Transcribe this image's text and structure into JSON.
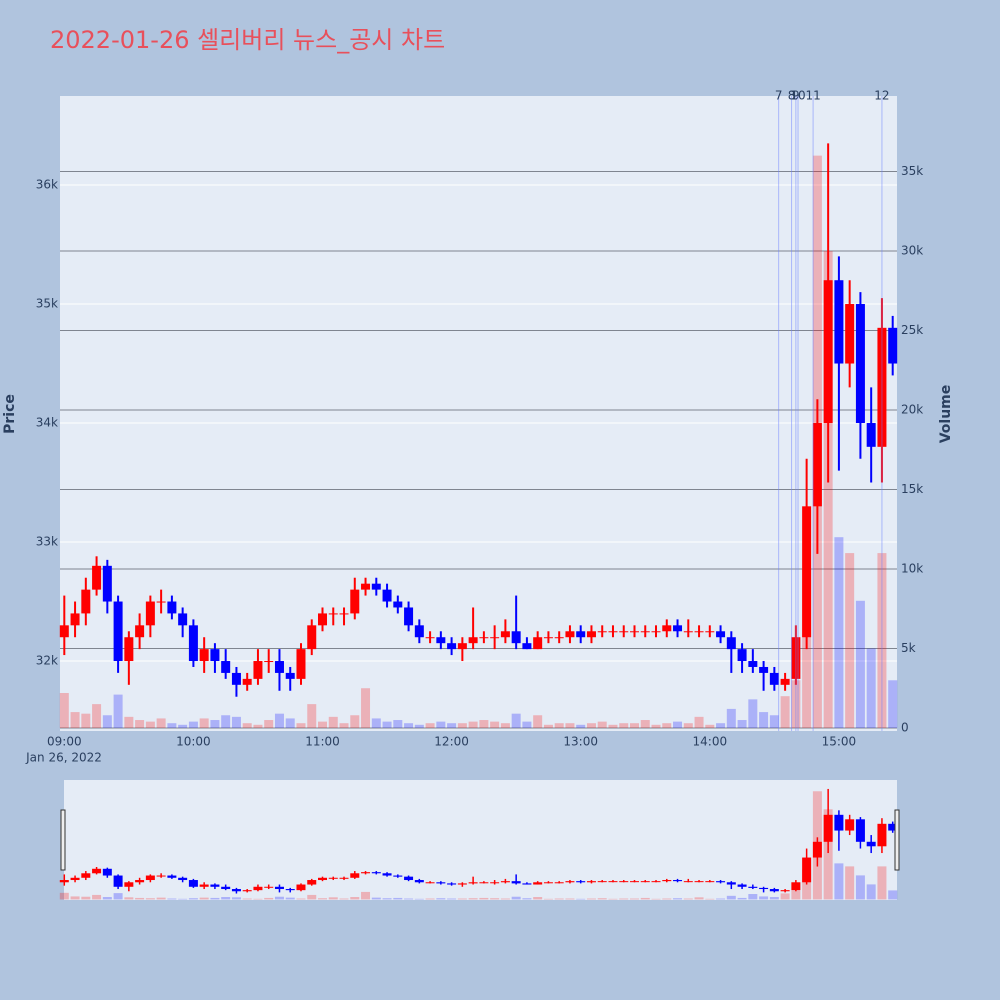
{
  "chart_data": {
    "type": "candlestick",
    "title": "2022-01-26 셀리버리 뉴스_공시 차트",
    "x": [
      "2022-01-26 09:00",
      "2022-01-26 09:05",
      "2022-01-26 09:10",
      "2022-01-26 09:15",
      "2022-01-26 09:20",
      "2022-01-26 09:25",
      "2022-01-26 09:30",
      "2022-01-26 09:35",
      "2022-01-26 09:40",
      "2022-01-26 09:45",
      "2022-01-26 09:50",
      "2022-01-26 09:55",
      "2022-01-26 10:00",
      "2022-01-26 10:05",
      "2022-01-26 10:10",
      "2022-01-26 10:15",
      "2022-01-26 10:20",
      "2022-01-26 10:25",
      "2022-01-26 10:30",
      "2022-01-26 10:35",
      "2022-01-26 10:40",
      "2022-01-26 10:45",
      "2022-01-26 10:50",
      "2022-01-26 10:55",
      "2022-01-26 11:00",
      "2022-01-26 11:05",
      "2022-01-26 11:10",
      "2022-01-26 11:15",
      "2022-01-26 11:20",
      "2022-01-26 11:25",
      "2022-01-26 11:30",
      "2022-01-26 11:35",
      "2022-01-26 11:40",
      "2022-01-26 11:45",
      "2022-01-26 11:50",
      "2022-01-26 11:55",
      "2022-01-26 12:00",
      "2022-01-26 12:05",
      "2022-01-26 12:10",
      "2022-01-26 12:15",
      "2022-01-26 12:20",
      "2022-01-26 12:25",
      "2022-01-26 12:30",
      "2022-01-26 12:35",
      "2022-01-26 12:40",
      "2022-01-26 12:45",
      "2022-01-26 12:50",
      "2022-01-26 12:55",
      "2022-01-26 13:00",
      "2022-01-26 13:05",
      "2022-01-26 13:10",
      "2022-01-26 13:15",
      "2022-01-26 13:20",
      "2022-01-26 13:25",
      "2022-01-26 13:30",
      "2022-01-26 13:35",
      "2022-01-26 13:40",
      "2022-01-26 13:45",
      "2022-01-26 13:50",
      "2022-01-26 13:55",
      "2022-01-26 14:00",
      "2022-01-26 14:05",
      "2022-01-26 14:10",
      "2022-01-26 14:15",
      "2022-01-26 14:20",
      "2022-01-26 14:25",
      "2022-01-26 14:30",
      "2022-01-26 14:35",
      "2022-01-26 14:40",
      "2022-01-26 14:45",
      "2022-01-26 14:50",
      "2022-01-26 14:55",
      "2022-01-26 15:00",
      "2022-01-26 15:05",
      "2022-01-26 15:10",
      "2022-01-26 15:15",
      "2022-01-26 15:20",
      "2022-01-26 15:25"
    ],
    "open": [
      32200,
      32300,
      32400,
      32600,
      32800,
      32500,
      32000,
      32200,
      32300,
      32500,
      32500,
      32400,
      32300,
      32000,
      32100,
      32000,
      31900,
      31800,
      31850,
      32000,
      32000,
      31900,
      31850,
      32100,
      32300,
      32400,
      32400,
      32400,
      32600,
      32650,
      32600,
      32500,
      32450,
      32300,
      32200,
      32200,
      32150,
      32100,
      32150,
      32200,
      32200,
      32200,
      32250,
      32150,
      32100,
      32200,
      32200,
      32200,
      32250,
      32200,
      32250,
      32250,
      32250,
      32250,
      32250,
      32250,
      32250,
      32300,
      32250,
      32250,
      32250,
      32250,
      32200,
      32100,
      32000,
      31950,
      31900,
      31800,
      31850,
      32200,
      33300,
      34000,
      35200,
      34500,
      35000,
      34000,
      33800,
      34800
    ],
    "high": [
      32550,
      32500,
      32700,
      32880,
      32850,
      32550,
      32250,
      32400,
      32550,
      32600,
      32550,
      32450,
      32350,
      32200,
      32150,
      32100,
      31950,
      31900,
      32100,
      32100,
      32100,
      31950,
      32150,
      32350,
      32450,
      32450,
      32450,
      32700,
      32700,
      32700,
      32650,
      32550,
      32500,
      32350,
      32250,
      32250,
      32200,
      32200,
      32450,
      32250,
      32300,
      32350,
      32550,
      32200,
      32250,
      32250,
      32250,
      32300,
      32300,
      32300,
      32300,
      32300,
      32300,
      32300,
      32300,
      32300,
      32350,
      32350,
      32350,
      32300,
      32300,
      32300,
      32250,
      32150,
      32100,
      32000,
      31950,
      31900,
      32300,
      33700,
      34200,
      36350,
      35400,
      35200,
      35100,
      34300,
      35050,
      34900
    ],
    "low": [
      32050,
      32200,
      32300,
      32550,
      32400,
      31900,
      31800,
      32100,
      32200,
      32400,
      32350,
      32200,
      31950,
      31900,
      31900,
      31850,
      31700,
      31750,
      31800,
      31900,
      31750,
      31750,
      31800,
      32050,
      32250,
      32300,
      32300,
      32350,
      32550,
      32550,
      32450,
      32400,
      32250,
      32150,
      32150,
      32100,
      32050,
      32000,
      32100,
      32150,
      32100,
      32150,
      32100,
      32100,
      32100,
      32150,
      32150,
      32150,
      32150,
      32150,
      32200,
      32200,
      32200,
      32200,
      32200,
      32200,
      32200,
      32200,
      32200,
      32200,
      32200,
      32150,
      31900,
      31900,
      31900,
      31750,
      31750,
      31750,
      31800,
      32100,
      32900,
      33500,
      33600,
      34300,
      33700,
      33500,
      33500,
      34400
    ],
    "close": [
      32300,
      32400,
      32600,
      32800,
      32500,
      32000,
      32200,
      32300,
      32500,
      32500,
      32400,
      32300,
      32000,
      32100,
      32000,
      31900,
      31800,
      31850,
      32000,
      32000,
      31900,
      31850,
      32100,
      32300,
      32400,
      32400,
      32400,
      32600,
      32650,
      32600,
      32500,
      32450,
      32300,
      32200,
      32200,
      32150,
      32100,
      32150,
      32200,
      32200,
      32200,
      32250,
      32150,
      32100,
      32200,
      32200,
      32200,
      32250,
      32200,
      32250,
      32250,
      32250,
      32250,
      32250,
      32250,
      32250,
      32300,
      32250,
      32250,
      32250,
      32250,
      32200,
      32100,
      32000,
      31950,
      31900,
      31800,
      31850,
      32200,
      33300,
      34000,
      35200,
      34500,
      35000,
      34000,
      33800,
      34800,
      34500
    ],
    "volume": [
      2200,
      1000,
      900,
      1500,
      800,
      2100,
      700,
      500,
      400,
      600,
      300,
      200,
      400,
      600,
      500,
      800,
      700,
      300,
      200,
      500,
      900,
      600,
      300,
      1500,
      400,
      700,
      300,
      800,
      2500,
      600,
      400,
      500,
      300,
      200,
      300,
      400,
      300,
      300,
      400,
      500,
      400,
      300,
      900,
      400,
      800,
      200,
      300,
      300,
      200,
      300,
      400,
      200,
      300,
      300,
      500,
      200,
      300,
      400,
      300,
      700,
      200,
      300,
      1200,
      500,
      1800,
      1000,
      800,
      2000,
      3000,
      10000,
      36000,
      30000,
      12000,
      11000,
      8000,
      5000,
      11000,
      3000
    ],
    "increasing_color": "#ff0000",
    "decreasing_color": "#0000ff",
    "xlim": [
      "2022-01-26 08:58",
      "2022-01-26 15:27"
    ],
    "xticks": [
      {
        "value": "2022-01-26 09:00",
        "label": "09:00"
      },
      {
        "value": "2022-01-26 10:00",
        "label": "10:00"
      },
      {
        "value": "2022-01-26 11:00",
        "label": "11:00"
      },
      {
        "value": "2022-01-26 12:00",
        "label": "12:00"
      },
      {
        "value": "2022-01-26 13:00",
        "label": "13:00"
      },
      {
        "value": "2022-01-26 14:00",
        "label": "14:00"
      },
      {
        "value": "2022-01-26 15:00",
        "label": "15:00"
      }
    ],
    "x_date_label": "Jan 26, 2022",
    "ylim": [
      31412,
      36748
    ],
    "yticks": [
      {
        "value": 32000,
        "label": "32k"
      },
      {
        "value": 33000,
        "label": "33k"
      },
      {
        "value": 34000,
        "label": "34k"
      },
      {
        "value": 35000,
        "label": "35k"
      },
      {
        "value": 36000,
        "label": "36k"
      }
    ],
    "y_label": "Price",
    "y2lim": [
      -190,
      39750
    ],
    "y2ticks": [
      0,
      {
        "value": 5000,
        "label": "5k"
      },
      {
        "value": 10000,
        "label": "10k"
      },
      {
        "value": 15000,
        "label": "15k"
      },
      {
        "value": 20000,
        "label": "20k"
      },
      {
        "value": 25000,
        "label": "25k"
      },
      {
        "value": 30000,
        "label": "30k"
      },
      {
        "value": 35000,
        "label": "35k"
      }
    ],
    "y2_label": "Volume",
    "annotations": [
      {
        "x": "2022-01-26 14:32",
        "label": "7"
      },
      {
        "x": "2022-01-26 14:38",
        "label": "8"
      },
      {
        "x": "2022-01-26 14:40",
        "label": "9"
      },
      {
        "x": "2022-01-26 14:41",
        "label": "10"
      },
      {
        "x": "2022-01-26 14:48",
        "label": "11"
      },
      {
        "x": "2022-01-26 15:20",
        "label": "12"
      }
    ],
    "grid": true,
    "rangeslider": true
  }
}
